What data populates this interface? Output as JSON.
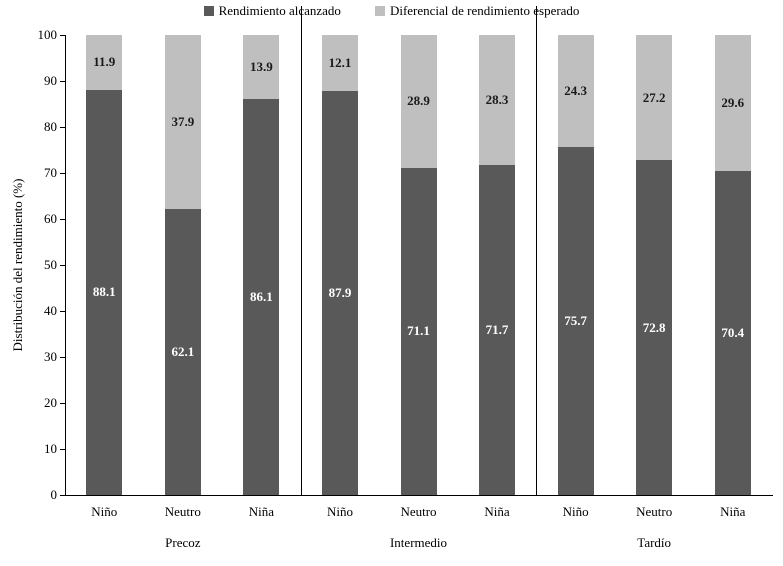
{
  "chart_data": {
    "type": "bar",
    "stacked": true,
    "percent_stacked": true,
    "title": "",
    "ylabel": "Distribución del rendimiento (%)",
    "xlabel": "",
    "ylim": [
      0,
      100
    ],
    "yticks": [
      0,
      10,
      20,
      30,
      40,
      50,
      60,
      70,
      80,
      90,
      100
    ],
    "grid": false,
    "legend_position": "top",
    "groups": [
      "Precoz",
      "Intermedio",
      "Tardío"
    ],
    "categories": [
      "Niño",
      "Neutro",
      "Niña"
    ],
    "series": [
      {
        "name": "Rendimiento alcanzado",
        "color": "#595959",
        "label_color": "#ffffff",
        "values": [
          [
            88.1,
            62.1,
            86.1
          ],
          [
            87.9,
            71.1,
            71.7
          ],
          [
            75.7,
            72.8,
            70.4
          ]
        ]
      },
      {
        "name": "Diferencial de rendimiento esperado",
        "color": "#bfbfbf",
        "label_color": "#1a1a1a",
        "values": [
          [
            11.9,
            37.9,
            13.9
          ],
          [
            12.1,
            28.9,
            28.3
          ],
          [
            24.3,
            27.2,
            29.6
          ]
        ]
      }
    ]
  }
}
